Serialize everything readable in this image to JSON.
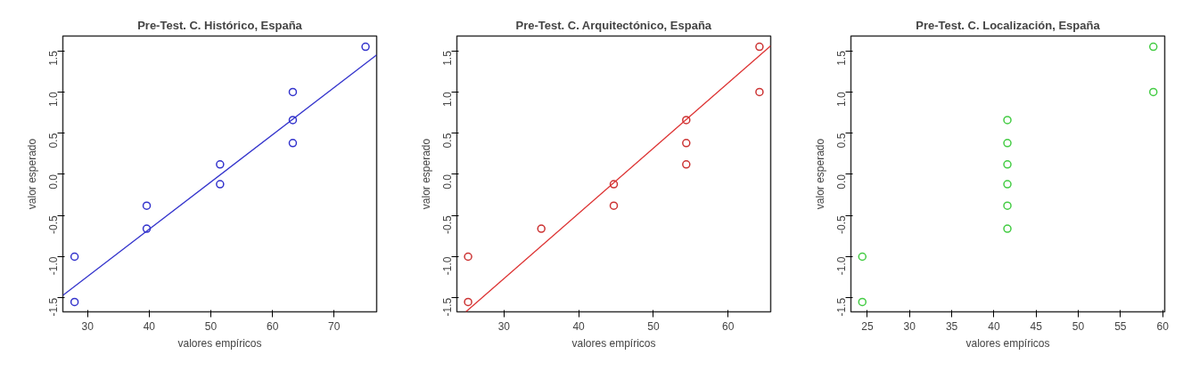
{
  "chart_data": [
    {
      "type": "scatter",
      "title": "Pre-Test. C. Histórico, España",
      "xlabel": "valores empíricos",
      "ylabel": "valor esperado",
      "xlim": [
        26.0,
        76.9
      ],
      "ylim": [
        -1.67,
        1.68
      ],
      "xticks": [
        30,
        40,
        50,
        60,
        70
      ],
      "yticks": [
        {
          "value": -1.5,
          "label": "-1.5"
        },
        {
          "value": -1.0,
          "label": "-1.0"
        },
        {
          "value": -0.5,
          "label": "-0.5"
        },
        {
          "value": 0.0,
          "label": "0.0"
        },
        {
          "value": 0.5,
          "label": "0.5"
        },
        {
          "value": 1.0,
          "label": "1.0"
        },
        {
          "value": 1.5,
          "label": "1.5"
        }
      ],
      "grid": false,
      "series": [
        {
          "marker": "circle",
          "color": "#3333cc",
          "x": [
            27.9,
            27.9,
            39.6,
            39.6,
            51.5,
            51.5,
            63.3,
            63.3,
            63.3,
            75.1
          ],
          "values": [
            -1.55,
            -1.0,
            -0.66,
            -0.38,
            -0.12,
            0.12,
            0.38,
            0.66,
            1.0,
            1.55
          ]
        },
        {
          "type": "line",
          "marker": "none",
          "color": "#3333cc",
          "x": [
            26.0,
            76.9
          ],
          "values": [
            -1.47,
            1.45
          ]
        }
      ]
    },
    {
      "type": "scatter",
      "title": "Pre-Test. C. Arquitectónico, España",
      "xlabel": "valores empíricos",
      "ylabel": "valor esperado",
      "xlim": [
        23.7,
        65.7
      ],
      "ylim": [
        -1.67,
        1.68
      ],
      "xticks": [
        30,
        40,
        50,
        60
      ],
      "yticks": [
        {
          "value": -1.5,
          "label": "-1.5"
        },
        {
          "value": -1.0,
          "label": "-1.0"
        },
        {
          "value": -0.5,
          "label": "-0.5"
        },
        {
          "value": 0.0,
          "label": "0.0"
        },
        {
          "value": 0.5,
          "label": "0.5"
        },
        {
          "value": 1.0,
          "label": "1.0"
        },
        {
          "value": 1.5,
          "label": "1.5"
        }
      ],
      "grid": false,
      "series": [
        {
          "marker": "circle",
          "color": "#cc3333",
          "x": [
            25.2,
            25.2,
            35.0,
            44.7,
            44.7,
            54.4,
            54.4,
            54.4,
            64.2,
            64.2
          ],
          "values": [
            -1.55,
            -1.0,
            -0.66,
            -0.38,
            -0.12,
            0.12,
            0.38,
            0.66,
            1.0,
            1.55
          ]
        },
        {
          "type": "line",
          "marker": "none",
          "color": "#dd3333",
          "x": [
            24.9,
            65.7
          ],
          "values": [
            -1.67,
            1.56
          ]
        }
      ]
    },
    {
      "type": "scatter",
      "title": "Pre-Test. C. Localización, España",
      "xlabel": "valores empíricos",
      "ylabel": "valor esperado",
      "xlim": [
        23.05,
        60.25
      ],
      "ylim": [
        -1.67,
        1.68
      ],
      "xticks": [
        25,
        30,
        35,
        40,
        45,
        50,
        55,
        60
      ],
      "yticks": [
        {
          "value": -1.5,
          "label": "-1.5"
        },
        {
          "value": -1.0,
          "label": "-1.0"
        },
        {
          "value": -0.5,
          "label": "-0.5"
        },
        {
          "value": 0.0,
          "label": "0.0"
        },
        {
          "value": 0.5,
          "label": "0.5"
        },
        {
          "value": 1.0,
          "label": "1.0"
        },
        {
          "value": 1.5,
          "label": "1.5"
        }
      ],
      "grid": false,
      "marker": "circle",
      "series": [
        {
          "color": "#44cc44",
          "x": [
            24.4,
            24.4,
            41.6,
            41.6,
            41.6,
            41.6,
            41.6,
            41.6,
            58.9,
            58.9
          ],
          "values": [
            -1.55,
            -1.0,
            -0.66,
            -0.38,
            -0.12,
            0.12,
            0.38,
            0.66,
            1.0,
            1.55
          ]
        }
      ]
    }
  ]
}
